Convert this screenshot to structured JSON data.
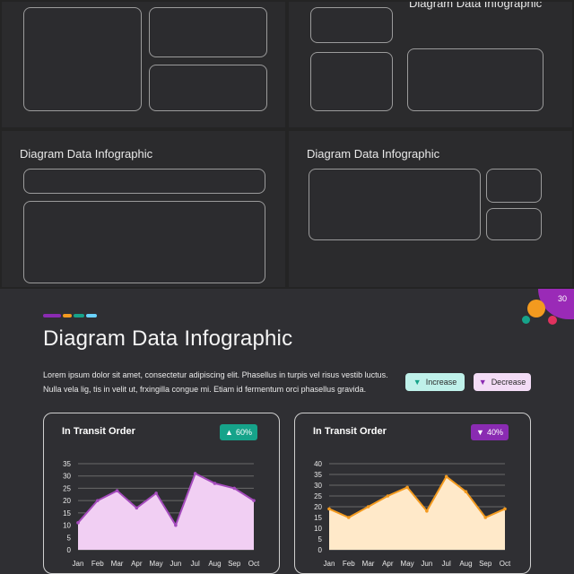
{
  "colors": {
    "accent_purple": "#8a2bb2",
    "accent_green": "#16a38a",
    "accent_orange": "#f39a1f",
    "fill_pink": "#f1cff3",
    "fill_peach": "#ffe9c9",
    "line_purple": "#a54bbd",
    "line_orange": "#f39a1f"
  },
  "thumbs": {
    "top_right_title": "Diagram Data Infographic",
    "mid_left_title": "Diagram Data Infographic",
    "mid_right_title": "Diagram Data Infographic"
  },
  "slide": {
    "page_number": "30",
    "title": "Diagram Data Infographic",
    "description_lines": [
      "Lorem ipsum dolor sit amet, consectetur adipiscing elit. Phasellus in turpis vel risus vestib luctus.",
      "Nulla vela lig, tis in velit ut, frxingilla congue mi. Etiam id fermentum orci phasellus gravida."
    ],
    "legend": {
      "increase_label": "Increase",
      "decrease_label": "Decrease",
      "increase_icon": "triangle-down-icon",
      "decrease_icon": "triangle-down-icon"
    },
    "cards": [
      {
        "title": "In Transit Order",
        "badge": "60%",
        "badge_icon": "triangle-up-icon"
      },
      {
        "title": "In Transit Order",
        "badge": "40%",
        "badge_icon": "triangle-down-icon"
      }
    ]
  },
  "chart_data": [
    {
      "type": "area",
      "title": "In Transit Order",
      "categories": [
        "Jan",
        "Feb",
        "Mar",
        "Apr",
        "May",
        "Jun",
        "Jul",
        "Aug",
        "Sep",
        "Oct"
      ],
      "values": [
        11,
        20,
        24,
        17,
        23,
        10,
        31,
        27,
        25,
        20
      ],
      "ylim": [
        0,
        35
      ],
      "yticks": [
        0,
        5,
        10,
        15,
        20,
        25,
        30,
        35
      ],
      "grid": true
    },
    {
      "type": "area",
      "title": "In Transit Order",
      "categories": [
        "Jan",
        "Feb",
        "Mar",
        "Apr",
        "May",
        "Jun",
        "Jul",
        "Aug",
        "Sep",
        "Oct"
      ],
      "values": [
        19,
        15,
        20,
        25,
        29,
        18,
        34,
        27,
        15,
        19
      ],
      "ylim": [
        0,
        40
      ],
      "yticks": [
        0,
        5,
        10,
        15,
        20,
        25,
        30,
        35,
        40
      ],
      "grid": true
    }
  ]
}
